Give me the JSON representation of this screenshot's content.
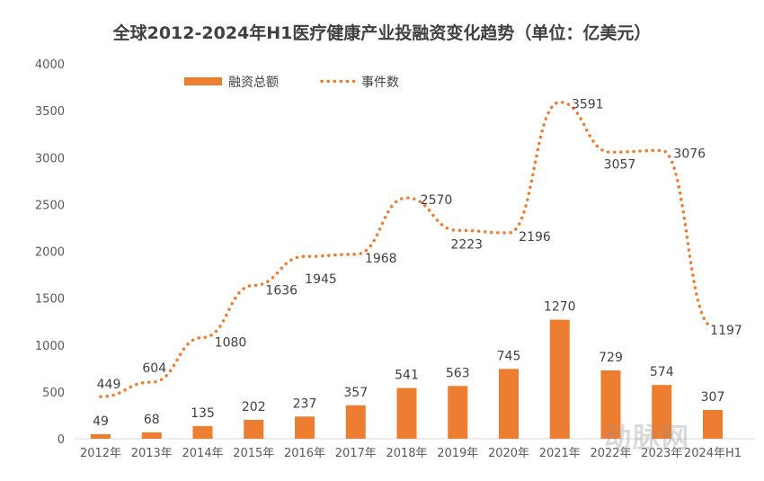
{
  "title": "全球2012-2024年H1医疗健康产业投融资变化趋势（单位：亿美元）",
  "watermark": "动脉网",
  "colors": {
    "bar": "#ED7D31",
    "line": "#ED7D31"
  },
  "chart_data": {
    "type": "bar+line",
    "title": "全球2012-2024年H1医疗健康产业投融资变化趋势（单位：亿美元）",
    "categories": [
      "2012年",
      "2013年",
      "2014年",
      "2015年",
      "2016年",
      "2017年",
      "2018年",
      "2019年",
      "2020年",
      "2021年",
      "2022年",
      "2023年",
      "2024年H1"
    ],
    "series": [
      {
        "name": "融资总额",
        "type": "bar",
        "values": [
          49,
          68,
          135,
          202,
          237,
          357,
          541,
          563,
          745,
          1270,
          729,
          574,
          307
        ]
      },
      {
        "name": "事件数",
        "type": "line",
        "style": "dotted",
        "values": [
          449,
          604,
          1080,
          1636,
          1945,
          1968,
          2570,
          2223,
          2196,
          3591,
          3057,
          3076,
          1197
        ]
      }
    ],
    "yticks": [
      0,
      500,
      1000,
      1500,
      2000,
      2500,
      3000,
      3500,
      4000
    ],
    "ylim": [
      0,
      4000
    ],
    "grid": false,
    "legend": "top-left"
  }
}
